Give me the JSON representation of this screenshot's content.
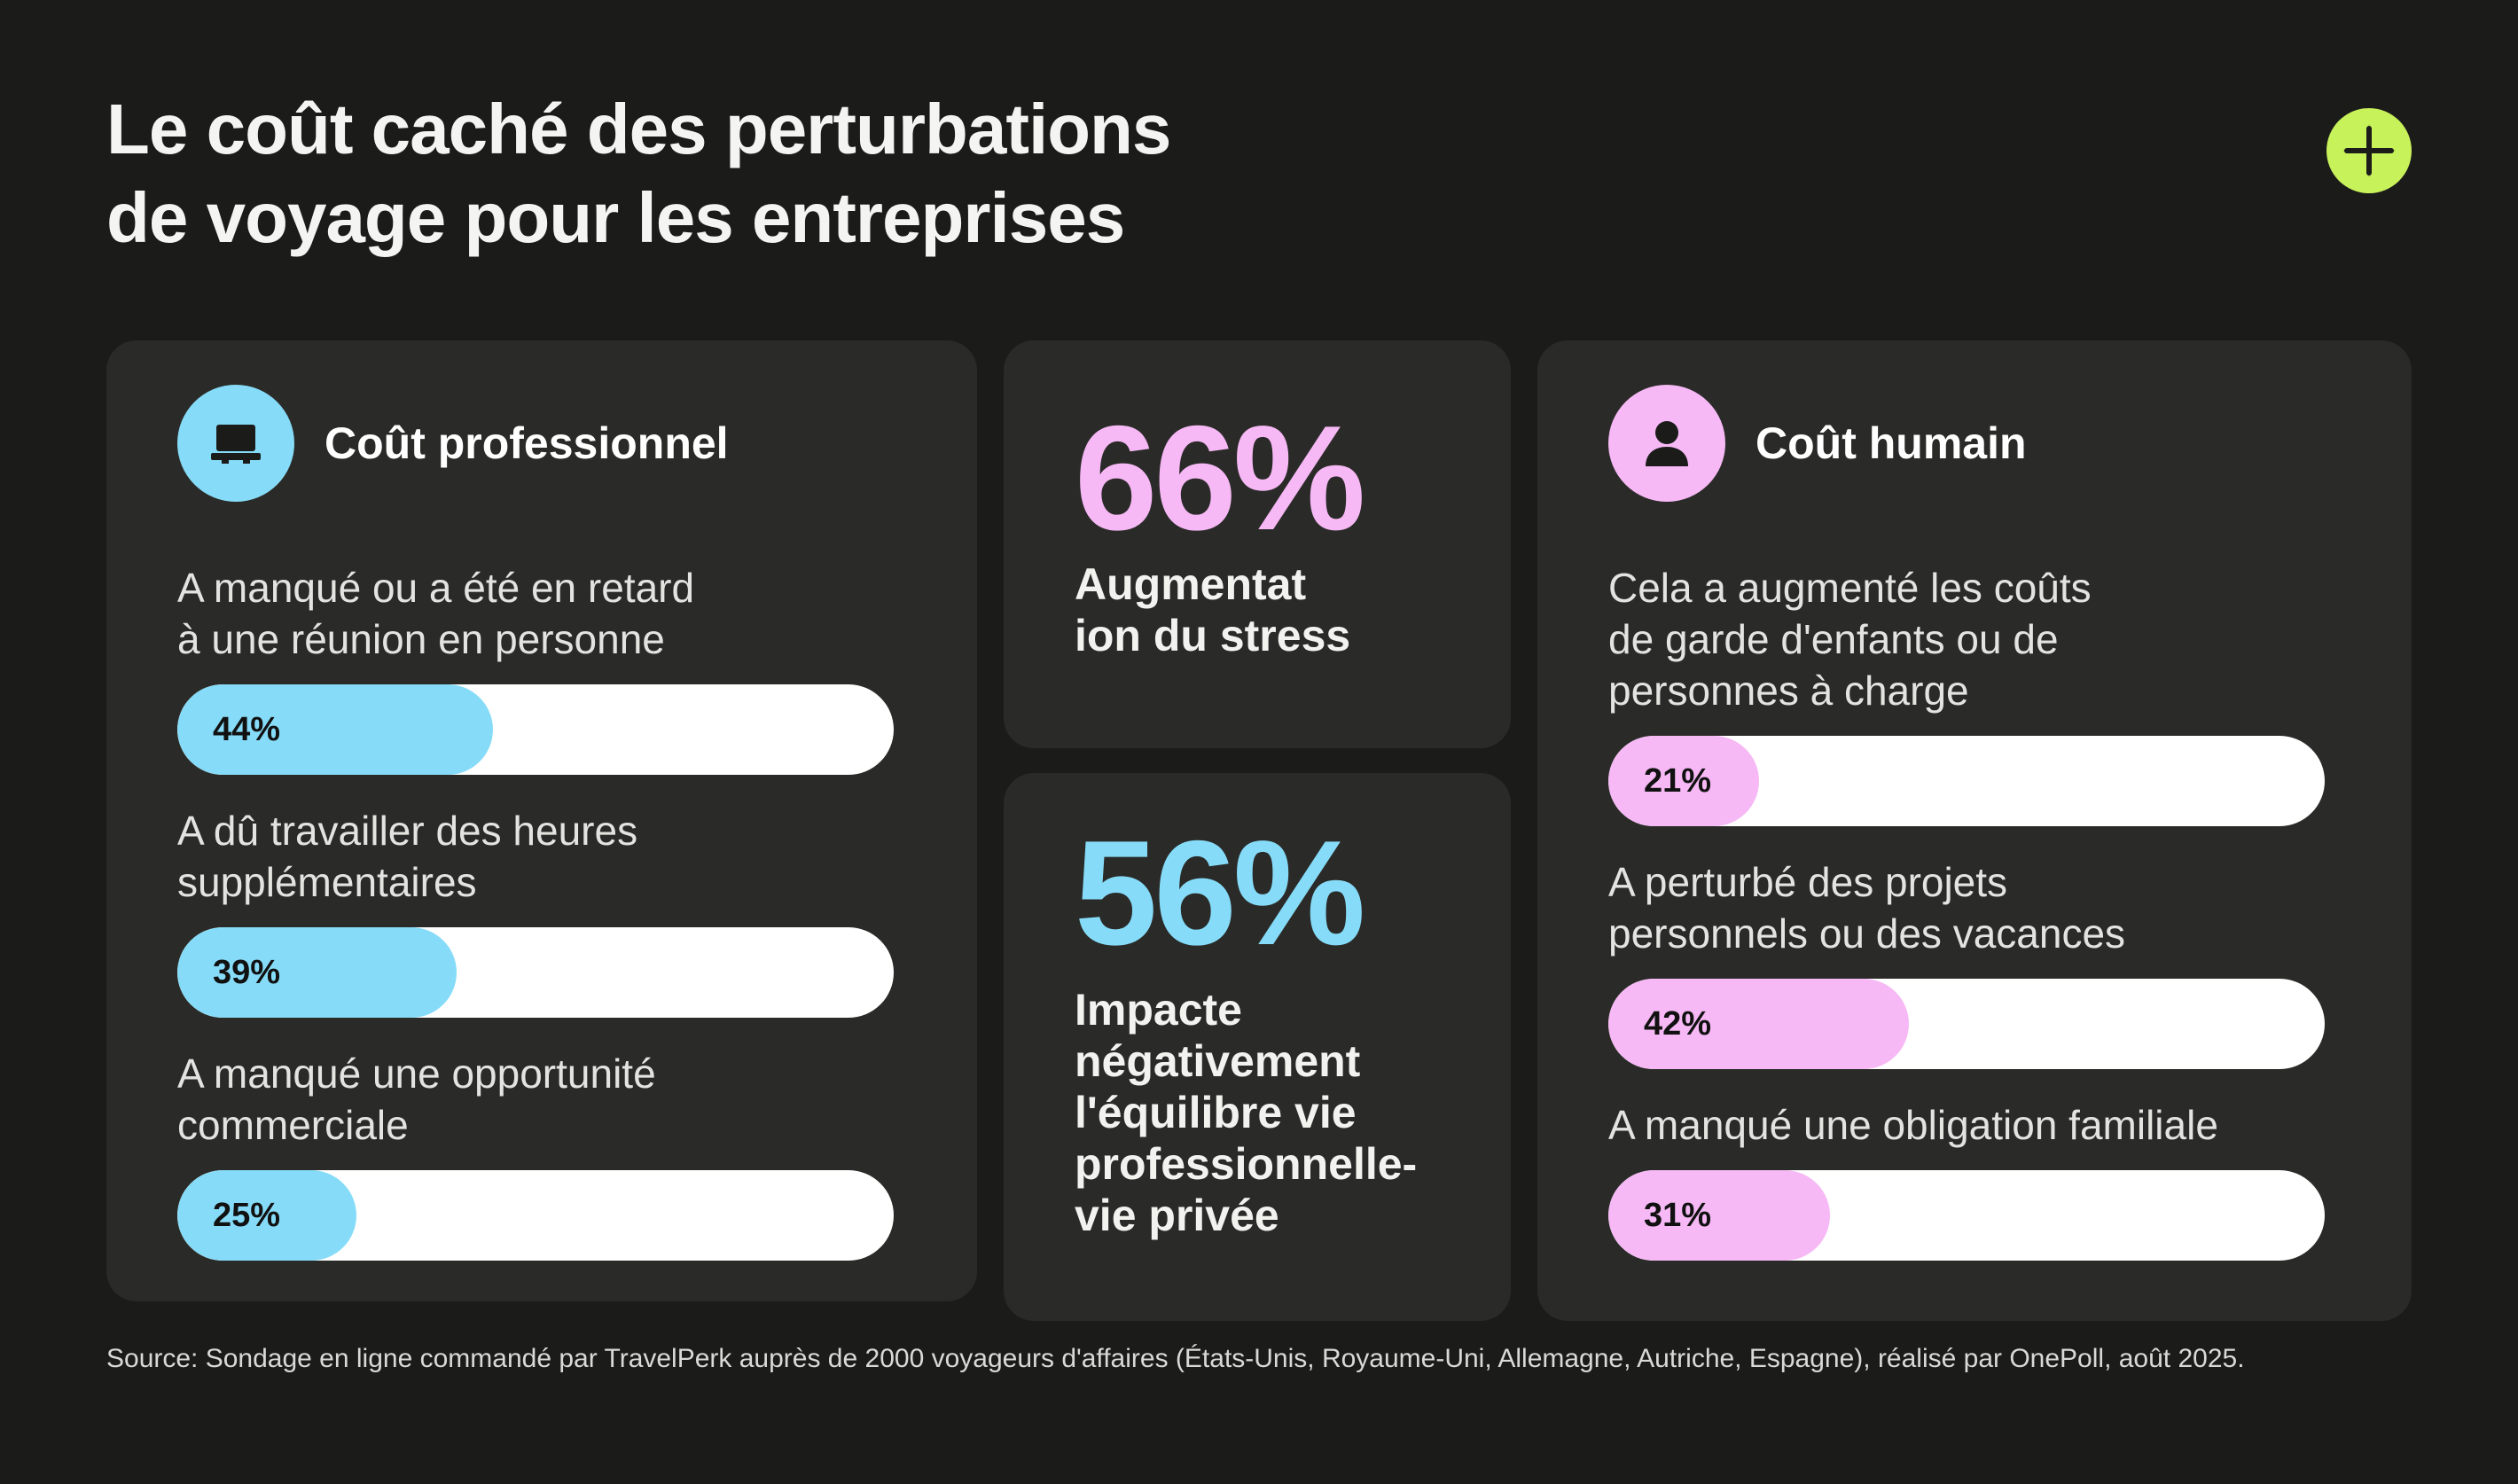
{
  "title_lines": [
    "Le coût caché des perturbations",
    "de voyage pour les entreprises"
  ],
  "brand_icon": "plus-icon",
  "colors": {
    "background": "#1b1b1a",
    "card": "#2a2a28",
    "blue": "#86dcf8",
    "pink": "#f6b9f5",
    "logo": "#c8f25a",
    "track": "#ffffff"
  },
  "professional": {
    "title": "Coût professionnel",
    "icon": "laptop-icon",
    "metrics": [
      {
        "label_lines": [
          "A manqué ou a été en retard",
          "à une réunion en personne"
        ],
        "value": 44,
        "value_label": "44%"
      },
      {
        "label_lines": [
          "A dû travailler des heures",
          "supplémentaires"
        ],
        "value": 39,
        "value_label": "39%"
      },
      {
        "label_lines": [
          "A manqué une opportunité",
          "commerciale"
        ],
        "value": 25,
        "value_label": "25%"
      }
    ]
  },
  "stats": [
    {
      "value_label": "66%",
      "label_lines": [
        "Augmentat",
        "ion du stress"
      ]
    },
    {
      "value_label": "56%",
      "label_lines": [
        "Impacte",
        "négativement",
        "l'équilibre vie",
        "professionnelle-",
        "vie privée"
      ]
    }
  ],
  "human": {
    "title": "Coût humain",
    "icon": "person-icon",
    "metrics": [
      {
        "label_lines": [
          "Cela a augmenté les coûts",
          "de garde d'enfants ou de",
          "personnes à charge"
        ],
        "value": 21,
        "value_label": "21%"
      },
      {
        "label_lines": [
          "A perturbé des projets",
          "personnels ou des vacances"
        ],
        "value": 42,
        "value_label": "42%"
      },
      {
        "label_lines": [
          "A manqué une obligation familiale"
        ],
        "value": 31,
        "value_label": "31%"
      }
    ]
  },
  "source": "Source: Sondage en ligne commandé par TravelPerk auprès de 2000 voyageurs d'affaires (États-Unis, Royaume-Uni, Allemagne, Autriche, Espagne), réalisé par OnePoll, août 2025.",
  "chart_data": [
    {
      "type": "bar",
      "title": "Coût professionnel",
      "categories": [
        "A manqué ou a été en retard à une réunion en personne",
        "A dû travailler des heures supplémentaires",
        "A manqué une opportunité commerciale"
      ],
      "values": [
        44,
        39,
        25
      ],
      "ylim": [
        0,
        100
      ]
    },
    {
      "type": "bar",
      "title": "Coût humain",
      "categories": [
        "Cela a augmenté les coûts de garde d'enfants ou de personnes à charge",
        "A perturbé des projets personnels ou des vacances",
        "A manqué une obligation familiale"
      ],
      "values": [
        21,
        42,
        31
      ],
      "ylim": [
        0,
        100
      ]
    }
  ]
}
